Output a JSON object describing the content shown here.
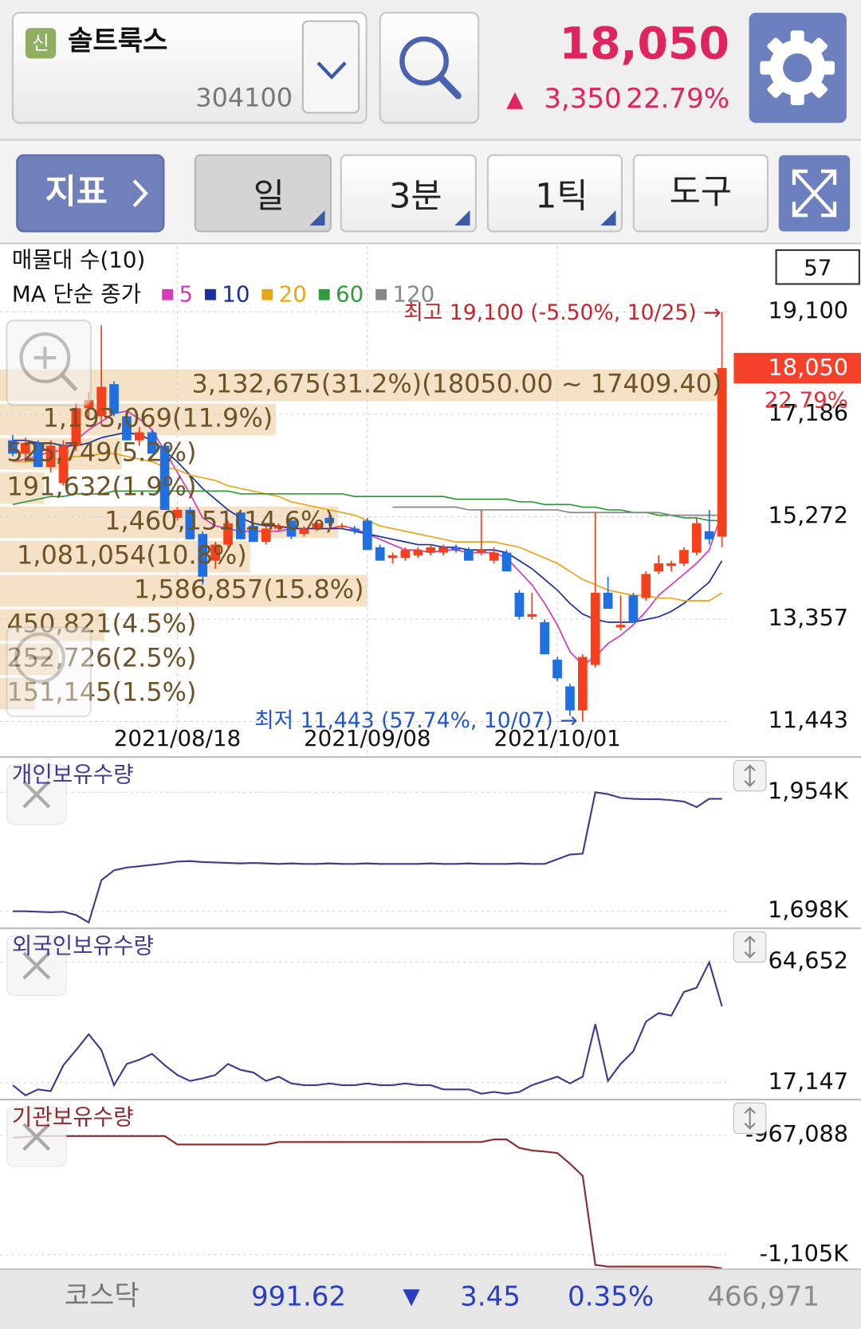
{
  "header": {
    "badge": "신",
    "name": "솔트룩스",
    "code": "304100",
    "price": "18,050",
    "change_sign": "▲",
    "change": "3,350",
    "change_rate": "22.79%"
  },
  "toolbar": {
    "indicator": "지표",
    "period": "일",
    "interval": "3분",
    "tick": "1틱",
    "tools": "도구"
  },
  "footer": {
    "market": "코스닥",
    "index": "991.62",
    "change_sign": "▼",
    "change": "3.45",
    "change_rate": "0.35%",
    "volume": "466,971"
  },
  "chart_data": [
    {
      "type": "candlestick",
      "profile_title": "매물대 수(10)",
      "ma_title": "MA 단순 종가",
      "view_count": 57,
      "categories": [
        null,
        null,
        null,
        null,
        null,
        null,
        null,
        null,
        null,
        null,
        null,
        null,
        null,
        "2021/08/18",
        null,
        null,
        null,
        null,
        null,
        null,
        null,
        null,
        null,
        null,
        null,
        null,
        null,
        null,
        "2021/09/08",
        null,
        null,
        null,
        null,
        null,
        null,
        null,
        null,
        null,
        null,
        null,
        null,
        null,
        null,
        "2021/10/01",
        null,
        null,
        null,
        null,
        null,
        null,
        null,
        null,
        null,
        null,
        null,
        null,
        null
      ],
      "candles": [
        [
          16700,
          16800,
          16400,
          16450
        ],
        [
          16450,
          16750,
          16300,
          16650
        ],
        [
          16650,
          16700,
          16200,
          16200
        ],
        [
          16200,
          16700,
          16100,
          16600
        ],
        [
          15900,
          16700,
          15850,
          16600
        ],
        [
          16600,
          17400,
          16500,
          17300
        ],
        [
          17300,
          17600,
          17100,
          17450
        ],
        [
          17150,
          18850,
          17000,
          17700
        ],
        [
          17750,
          17800,
          17150,
          17200
        ],
        [
          17150,
          17250,
          16700,
          16700
        ],
        [
          16700,
          16950,
          16600,
          16850
        ],
        [
          16850,
          16900,
          16450,
          16450
        ],
        [
          16600,
          16650,
          15400,
          15400
        ],
        [
          15250,
          15450,
          15200,
          15400
        ],
        [
          15400,
          15450,
          14850,
          14850
        ],
        [
          14950,
          15000,
          14000,
          14150
        ],
        [
          14450,
          14800,
          14300,
          14750
        ],
        [
          14750,
          15200,
          14700,
          15150
        ],
        [
          15350,
          15400,
          14850,
          14850
        ],
        [
          15100,
          15150,
          14800,
          14800
        ],
        [
          14800,
          15100,
          14750,
          15050
        ],
        [
          15050,
          15150,
          15000,
          15100
        ],
        [
          15200,
          15250,
          14850,
          14900
        ],
        [
          14950,
          15100,
          14900,
          15050
        ],
        [
          15050,
          15200,
          15000,
          15150
        ],
        [
          15250,
          15300,
          15100,
          15150
        ],
        [
          15100,
          15150,
          15050,
          15100
        ],
        [
          15050,
          15100,
          14950,
          15000
        ],
        [
          15200,
          15250,
          14650,
          14650
        ],
        [
          14700,
          14750,
          14450,
          14450
        ],
        [
          14500,
          14600,
          14400,
          14550
        ],
        [
          14500,
          14700,
          14450,
          14650
        ],
        [
          14550,
          14700,
          14500,
          14650
        ],
        [
          14600,
          14750,
          14550,
          14700
        ],
        [
          14600,
          14750,
          14550,
          14700
        ],
        [
          14700,
          14750,
          14600,
          14650
        ],
        [
          14650,
          14700,
          14450,
          14450
        ],
        [
          14600,
          15400,
          14550,
          14650
        ],
        [
          14450,
          14700,
          14400,
          14600
        ],
        [
          14600,
          14650,
          14250,
          14250
        ],
        [
          13850,
          13900,
          13350,
          13400
        ],
        [
          13400,
          13850,
          13350,
          13450
        ],
        [
          13300,
          13350,
          12700,
          12700
        ],
        [
          12600,
          12650,
          12200,
          12250
        ],
        [
          12100,
          12150,
          11550,
          11650
        ],
        [
          11650,
          12700,
          11443,
          12650
        ],
        [
          12500,
          15350,
          12450,
          13850
        ],
        [
          13850,
          14150,
          13550,
          13550
        ],
        [
          13200,
          13800,
          13150,
          13250
        ],
        [
          13800,
          13850,
          13300,
          13300
        ],
        [
          13750,
          14250,
          13700,
          14200
        ],
        [
          14250,
          14550,
          14200,
          14400
        ],
        [
          14350,
          14450,
          14250,
          14400
        ],
        [
          14400,
          14700,
          14350,
          14650
        ],
        [
          14600,
          15250,
          14550,
          15150
        ],
        [
          15000,
          15400,
          14750,
          14850
        ],
        [
          14900,
          19100,
          14700,
          18050
        ]
      ],
      "up_color": "#f5401e",
      "down_color": "#1f6fe0",
      "series": [
        {
          "name": "5",
          "color": "#d63ab8",
          "values": [
            16300,
            16350,
            16400,
            16500,
            16500,
            16700,
            16900,
            17050,
            17200,
            17250,
            17100,
            16900,
            16500,
            16100,
            15700,
            15250,
            15100,
            15050,
            15000,
            15000,
            15000,
            15000,
            15050,
            15050,
            15050,
            15050,
            15100,
            15050,
            14950,
            14850,
            14750,
            14650,
            14650,
            14600,
            14650,
            14650,
            14600,
            14600,
            14600,
            14500,
            14250,
            14000,
            13650,
            13250,
            12750,
            12500,
            12650,
            12900,
            13050,
            13250,
            13500,
            13800,
            14000,
            14200,
            14400,
            14650,
            15350
          ]
        },
        {
          "name": "10",
          "color": "#1a2f9a",
          "values": [
            16700,
            16700,
            16650,
            16650,
            16600,
            16600,
            16650,
            16750,
            16800,
            16850,
            16800,
            16700,
            16500,
            16300,
            16050,
            15800,
            15600,
            15400,
            15250,
            15150,
            15100,
            15100,
            15050,
            15050,
            15050,
            15050,
            15050,
            15000,
            14950,
            14900,
            14850,
            14800,
            14750,
            14750,
            14700,
            14700,
            14650,
            14650,
            14650,
            14600,
            14450,
            14300,
            14100,
            13900,
            13650,
            13450,
            13350,
            13300,
            13300,
            13300,
            13350,
            13400,
            13500,
            13650,
            13850,
            14050,
            14450
          ]
        },
        {
          "name": "20",
          "color": "#e6a817",
          "values": [
            16300,
            16300,
            16300,
            16350,
            16350,
            16400,
            16400,
            16450,
            16450,
            16400,
            16350,
            16300,
            16200,
            16150,
            16050,
            16000,
            15950,
            15850,
            15800,
            15750,
            15700,
            15650,
            15550,
            15500,
            15450,
            15400,
            15350,
            15300,
            15200,
            15100,
            15050,
            15000,
            14950,
            14900,
            14850,
            14800,
            14800,
            14800,
            14800,
            14750,
            14700,
            14600,
            14500,
            14400,
            14250,
            14100,
            14000,
            13900,
            13850,
            13800,
            13800,
            13750,
            13750,
            13700,
            13700,
            13700,
            13850
          ]
        },
        {
          "name": "60",
          "color": "#2f9b3a",
          "values": [
            15500,
            15550,
            15600,
            15650,
            15650,
            15700,
            15700,
            15700,
            15750,
            15750,
            15750,
            15750,
            15750,
            15750,
            15750,
            15750,
            15750,
            15750,
            15700,
            15700,
            15700,
            15700,
            15700,
            15700,
            15700,
            15700,
            15700,
            15650,
            15650,
            15650,
            15650,
            15650,
            15650,
            15650,
            15650,
            15600,
            15600,
            15600,
            15600,
            15600,
            15550,
            15550,
            15500,
            15500,
            15500,
            15450,
            15450,
            15400,
            15400,
            15350,
            15350,
            15300,
            15300,
            15250,
            15250,
            15200,
            15200
          ]
        },
        {
          "name": "120",
          "color": "#888888",
          "values": [
            null,
            null,
            null,
            null,
            null,
            null,
            null,
            null,
            null,
            null,
            null,
            null,
            null,
            null,
            null,
            null,
            null,
            null,
            null,
            null,
            null,
            null,
            null,
            null,
            null,
            null,
            null,
            null,
            null,
            null,
            15450,
            15450,
            15450,
            15450,
            15450,
            15450,
            15400,
            15400,
            15400,
            15400,
            15400,
            15400,
            15400,
            15400,
            15350,
            15350,
            15350,
            15350,
            15350,
            15350,
            15350,
            15350,
            15300,
            15300,
            15300,
            15300,
            15300
          ]
        }
      ],
      "ylim": [
        10825,
        20336
      ],
      "yticks": [
        {
          "value": 11443,
          "label": "11,443"
        },
        {
          "value": 13357,
          "label": "13,357"
        },
        {
          "value": 15272,
          "label": "15,272"
        },
        {
          "value": 17186,
          "label": "17,186"
        },
        {
          "value": 19100,
          "label": "19,100"
        }
      ],
      "grid": true,
      "volume_profile": {
        "bins": [
          18050,
          17409.4,
          16768.8,
          16128.2,
          15487.6,
          14847,
          14206.4,
          13565.8,
          12925.2,
          12284.6,
          11644
        ],
        "values": [
          3132675,
          1193069,
          525749,
          191632,
          1460151,
          1081054,
          1586857,
          450821,
          252726,
          151145
        ],
        "value_labels": [
          "3,132,675(31.2%)(18050.00 ~ 17409.40)",
          "1,193,069(11.9%)",
          "525,749(5.2%)",
          "191,632(1.9%)",
          "1,460,151(14.6%)",
          "1,081,054(10.8%)",
          "1,586,857(15.8%)",
          "450,821(4.5%)",
          "252,726(2.5%)",
          "151,145(1.5%)"
        ],
        "color": "#f3dcbc"
      },
      "annotations": {
        "high": "최고 19,100 (-5.50%, 10/25) →",
        "low": "최저 11,443 (57.74%, 10/07) →"
      },
      "last_price": {
        "value": 18050,
        "label": "18,050"
      },
      "last_change": "22.79%"
    },
    {
      "type": "line",
      "title": "개인보유수량",
      "color": "#3c3c8c",
      "values": [
        1698000,
        1698000,
        1697000,
        1696000,
        1697000,
        1690000,
        1674000,
        1765000,
        1786000,
        1792000,
        1795000,
        1798000,
        1801000,
        1805000,
        1806000,
        1804000,
        1803000,
        1802000,
        1801000,
        1802000,
        1801000,
        1800000,
        1801000,
        1800000,
        1800000,
        1801000,
        1800000,
        1800000,
        1801000,
        1800000,
        1800000,
        1800000,
        1800000,
        1801000,
        1800000,
        1800000,
        1801000,
        1800000,
        1800000,
        1800000,
        1801000,
        1800000,
        1800000,
        1810000,
        1820000,
        1822000,
        1954000,
        1950000,
        1942000,
        1940000,
        1939000,
        1939000,
        1937000,
        1934000,
        1922000,
        1940000,
        1940000
      ],
      "ylim": [
        1665000,
        2026000
      ],
      "yticks": [
        {
          "value": 1698000,
          "label": "1,698K"
        },
        {
          "value": 1954000,
          "label": "1,954K"
        }
      ],
      "grid": true
    },
    {
      "type": "line",
      "title": "외국인보유수량",
      "color": "#3c3c8c",
      "values": [
        16150,
        12135,
        14477,
        13808,
        24000,
        30000,
        36220,
        30000,
        16150,
        24512,
        26185,
        28526,
        24000,
        20164,
        17822,
        18826,
        20164,
        24512,
        22171,
        21168,
        17822,
        19495,
        16819,
        16150,
        16150,
        16819,
        16150,
        16150,
        16819,
        16150,
        16150,
        16819,
        16150,
        16150,
        14477,
        14477,
        14477,
        12805,
        13474,
        12805,
        13474,
        16150,
        17822,
        19495,
        16819,
        19495,
        40233,
        17822,
        24512,
        29530,
        41237,
        44582,
        43579,
        52945,
        54617,
        64652,
        47258
      ],
      "ylim": [
        11126,
        77363
      ],
      "yticks": [
        {
          "value": 17147,
          "label": "17,147"
        },
        {
          "value": 64652,
          "label": "64,652"
        }
      ],
      "grid": true
    },
    {
      "type": "line",
      "title": "기관보유수량",
      "color": "#8b2a2a",
      "values": [
        -970022,
        -969044,
        -968066,
        -968066,
        -968066,
        -968066,
        -968066,
        -968066,
        -968066,
        -968066,
        -968066,
        -968066,
        -968066,
        -977847,
        -977847,
        -977847,
        -977847,
        -977847,
        -977847,
        -977847,
        -977847,
        -974913,
        -974913,
        -974913,
        -974913,
        -974913,
        -974913,
        -974913,
        -974913,
        -974913,
        -974913,
        -974913,
        -974913,
        -974913,
        -974913,
        -974913,
        -974913,
        -974913,
        -971979,
        -971979,
        -981760,
        -984694,
        -986000,
        -987628,
        -1000000,
        -1014037,
        -1116737,
        -1118693,
        -1118693,
        -1118693,
        -1118693,
        -1118693,
        -1118693,
        -1118693,
        -1118693,
        -1118693,
        -1120650
      ],
      "ylim": [
        -1121626,
        -927968
      ],
      "yticks": [
        {
          "value": -1105000,
          "label": "-1,105K"
        },
        {
          "value": -967088,
          "label": "-967,088"
        }
      ],
      "grid": true
    }
  ]
}
